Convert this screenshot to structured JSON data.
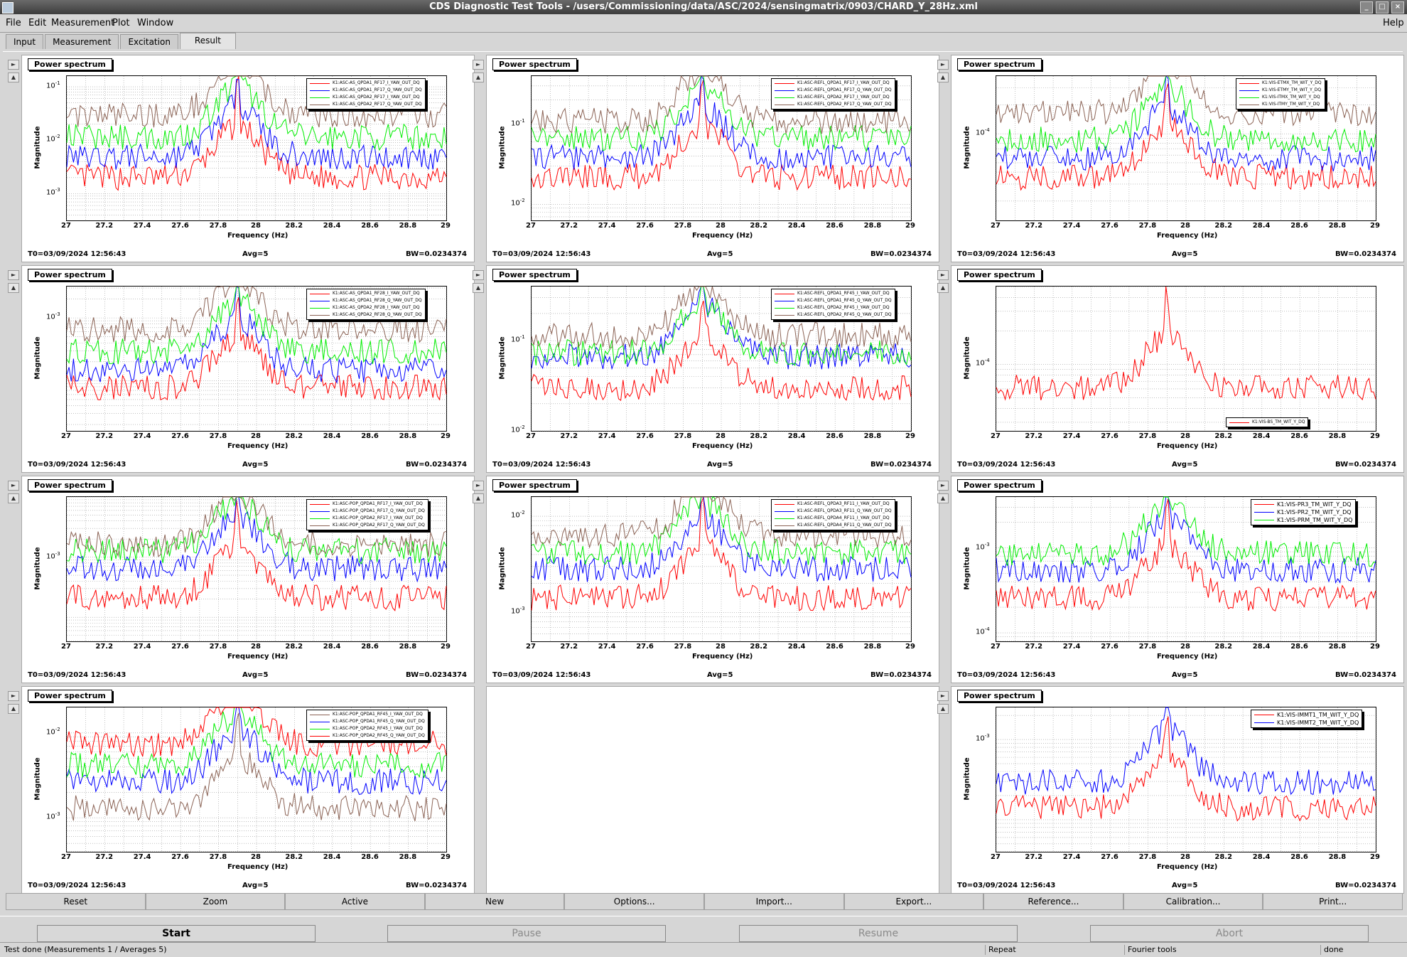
{
  "window": {
    "title": "CDS Diagnostic Test Tools - /users/Commissioning/data/ASC/2024/sensingmatrix/0903/CHARD_Y_28Hz.xml"
  },
  "menu": {
    "file": "File",
    "edit": "Edit",
    "measurement": "Measurement",
    "plot": "Plot",
    "window": "Window",
    "help": "Help"
  },
  "tabs": [
    "Input",
    "Measurement",
    "Excitation",
    "Result"
  ],
  "common": {
    "panel_title": "Power spectrum",
    "ylabel": "Magnitude",
    "xlabel": "Frequency (Hz)",
    "t0": "T0=03/09/2024 12:56:43",
    "avg": "Avg=5",
    "bw": "BW=0.0234374",
    "xticks": [
      "27",
      "27.2",
      "27.4",
      "27.6",
      "27.8",
      "28",
      "28.2",
      "28.4",
      "28.6",
      "28.8",
      "29"
    ]
  },
  "colors": {
    "red": "#ff0000",
    "blue": "#0000ff",
    "green": "#00ee00",
    "brown": "#8b6355"
  },
  "chart_data": [
    {
      "type": "line",
      "legend": [
        "K1:ASC-AS_QPDA1_RF17_I_YAW_OUT_DQ",
        "K1:ASC-AS_QPDA1_RF17_Q_YAW_OUT_DQ",
        "K1:ASC-AS_QPDA2_RF17_I_YAW_OUT_DQ",
        "K1:ASC-AS_QPDA2_RF17_Q_YAW_OUT_DQ"
      ],
      "legend_colors": [
        "red",
        "blue",
        "green",
        "brown"
      ],
      "yticks": [
        {
          "label": "10",
          "exp": "-1",
          "v": -1
        },
        {
          "label": "10",
          "exp": "-2",
          "v": -2
        },
        {
          "label": "10",
          "exp": "-3",
          "v": -3
        }
      ],
      "yrange": [
        -3.5,
        -0.8
      ],
      "xlim": [
        27,
        29
      ],
      "yscale": "log"
    },
    {
      "type": "line",
      "legend": [
        "K1:ASC-REFL_QPDA1_RF17_I_YAW_OUT_DQ",
        "K1:ASC-REFL_QPDA1_RF17_Q_YAW_OUT_DQ",
        "K1:ASC-REFL_QPDA2_RF17_I_YAW_OUT_DQ",
        "K1:ASC-REFL_QPDA2_RF17_Q_YAW_OUT_DQ"
      ],
      "legend_colors": [
        "red",
        "blue",
        "green",
        "brown"
      ],
      "yticks": [
        {
          "label": "10",
          "exp": "-1",
          "v": -1
        },
        {
          "label": "10",
          "exp": "-2",
          "v": -2
        }
      ],
      "yrange": [
        -2.2,
        -0.4
      ],
      "xlim": [
        27,
        29
      ],
      "yscale": "log"
    },
    {
      "type": "line",
      "legend": [
        "K1:VIS-ETMX_TM_WIT_Y_DQ",
        "K1:VIS-ETMY_TM_WIT_Y_DQ",
        "K1:VIS-ITMX_TM_WIT_Y_DQ",
        "K1:VIS-ITMY_TM_WIT_Y_DQ"
      ],
      "legend_colors": [
        "red",
        "blue",
        "green",
        "brown"
      ],
      "yticks": [
        {
          "label": "10",
          "exp": "-4",
          "v": -4
        }
      ],
      "yrange": [
        -4.9,
        -3.4
      ],
      "xlim": [
        27,
        29
      ],
      "yscale": "log"
    },
    {
      "type": "line",
      "legend": [
        "K1:ASC-AS_QPDA1_RF28_I_YAW_OUT_DQ",
        "K1:ASC-AS_QPDA1_RF28_Q_YAW_OUT_DQ",
        "K1:ASC-AS_QPDA2_RF28_I_YAW_OUT_DQ",
        "K1:ASC-AS_QPDA2_RF28_Q_YAW_OUT_DQ"
      ],
      "legend_colors": [
        "red",
        "blue",
        "green",
        "brown"
      ],
      "yticks": [
        {
          "label": "10",
          "exp": "-3",
          "v": -3
        }
      ],
      "yrange": [
        -4.8,
        -2.5
      ],
      "xlim": [
        27,
        29
      ],
      "yscale": "log"
    },
    {
      "type": "line",
      "legend": [
        "K1:ASC-REFL_QPDA1_RF45_I_YAW_OUT_DQ",
        "K1:ASC-REFL_QPDA1_RF45_Q_YAW_OUT_DQ",
        "K1:ASC-REFL_QPDA2_RF45_I_YAW_OUT_DQ",
        "K1:ASC-REFL_QPDA2_RF45_Q_YAW_OUT_DQ"
      ],
      "legend_colors": [
        "red",
        "blue",
        "green",
        "brown"
      ],
      "yticks": [
        {
          "label": "10",
          "exp": "-1",
          "v": -1
        },
        {
          "label": "10",
          "exp": "-2",
          "v": -2
        }
      ],
      "yrange": [
        -2.0,
        -0.4
      ],
      "xlim": [
        27,
        29
      ],
      "yscale": "log"
    },
    {
      "type": "line",
      "legend": [
        "K1:VIS-BS_TM_WIT_Y_DQ"
      ],
      "legend_colors": [
        "red"
      ],
      "yticks": [
        {
          "label": "10",
          "exp": "-4",
          "v": -4
        }
      ],
      "yrange": [
        -4.6,
        -3.3
      ],
      "xlim": [
        27,
        29
      ],
      "yscale": "log"
    },
    {
      "type": "line",
      "legend": [
        "K1:ASC-POP_QPDA1_RF17_I_YAW_OUT_DQ",
        "K1:ASC-POP_QPDA1_RF17_Q_YAW_OUT_DQ",
        "K1:ASC-POP_QPDA2_RF17_I_YAW_OUT_DQ",
        "K1:ASC-POP_QPDA2_RF17_Q_YAW_OUT_DQ"
      ],
      "legend_colors": [
        "red",
        "blue",
        "green",
        "brown"
      ],
      "yticks": [
        {
          "label": "10",
          "exp": "-3",
          "v": -3
        }
      ],
      "yrange": [
        -4.4,
        -2.0
      ],
      "xlim": [
        27,
        29
      ],
      "yscale": "log"
    },
    {
      "type": "line",
      "legend": [
        "K1:ASC-REFL_QPDA3_RF11_I_YAW_OUT_DQ",
        "K1:ASC-REFL_QPDA3_RF11_Q_YAW_OUT_DQ",
        "K1:ASC-REFL_QPDA4_RF11_I_YAW_OUT_DQ",
        "K1:ASC-REFL_QPDA4_RF11_Q_YAW_OUT_DQ"
      ],
      "legend_colors": [
        "red",
        "blue",
        "green",
        "brown"
      ],
      "yticks": [
        {
          "label": "10",
          "exp": "-2",
          "v": -2
        },
        {
          "label": "10",
          "exp": "-3",
          "v": -3
        }
      ],
      "yrange": [
        -3.3,
        -1.8
      ],
      "xlim": [
        27,
        29
      ],
      "yscale": "log"
    },
    {
      "type": "line",
      "legend": [
        "K1:VIS-PR3_TM_WIT_Y_DQ",
        "K1:VIS-PR2_TM_WIT_Y_DQ",
        "K1:VIS-PRM_TM_WIT_Y_DQ"
      ],
      "legend_colors": [
        "red",
        "blue",
        "green"
      ],
      "yticks": [
        {
          "label": "10",
          "exp": "-3",
          "v": -3
        },
        {
          "label": "10",
          "exp": "-4",
          "v": -4
        }
      ],
      "yrange": [
        -4.1,
        -2.4
      ],
      "xlim": [
        27,
        29
      ],
      "yscale": "log",
      "big_legend": true
    },
    {
      "type": "line",
      "legend": [
        "K1:ASC-POP_QPDA1_RF45_I_YAW_OUT_DQ",
        "K1:ASC-POP_QPDA1_RF45_Q_YAW_OUT_DQ",
        "K1:ASC-POP_QPDA2_RF45_I_YAW_OUT_DQ",
        "K1:ASC-POP_QPDA2_RF45_Q_YAW_OUT_DQ"
      ],
      "legend_colors": [
        "brown",
        "blue",
        "green",
        "red"
      ],
      "yticks": [
        {
          "label": "10",
          "exp": "-2",
          "v": -2
        },
        {
          "label": "10",
          "exp": "-3",
          "v": -3
        }
      ],
      "yrange": [
        -3.4,
        -1.7
      ],
      "xlim": [
        27,
        29
      ],
      "yscale": "log"
    },
    {
      "type": "line",
      "legend": [
        "K1:VIS-IMMT1_TM_WIT_Y_DQ",
        "K1:VIS-IMMT2_TM_WIT_Y_DQ"
      ],
      "legend_colors": [
        "red",
        "blue"
      ],
      "yticks": [
        {
          "label": "10",
          "exp": "-3",
          "v": -3
        }
      ],
      "yrange": [
        -4.4,
        -2.6
      ],
      "xlim": [
        27,
        29
      ],
      "yscale": "log",
      "big_legend": true
    }
  ],
  "toolbar": [
    "Reset",
    "Zoom",
    "Active",
    "New",
    "Options...",
    "Import...",
    "Export...",
    "Reference...",
    "Calibration...",
    "Print..."
  ],
  "controls": {
    "start": "Start",
    "pause": "Pause",
    "resume": "Resume",
    "abort": "Abort"
  },
  "status": {
    "left": "Test done (Measurements 1 / Averages 5)",
    "mode": "Repeat",
    "tool": "Fourier tools",
    "state": "done"
  }
}
